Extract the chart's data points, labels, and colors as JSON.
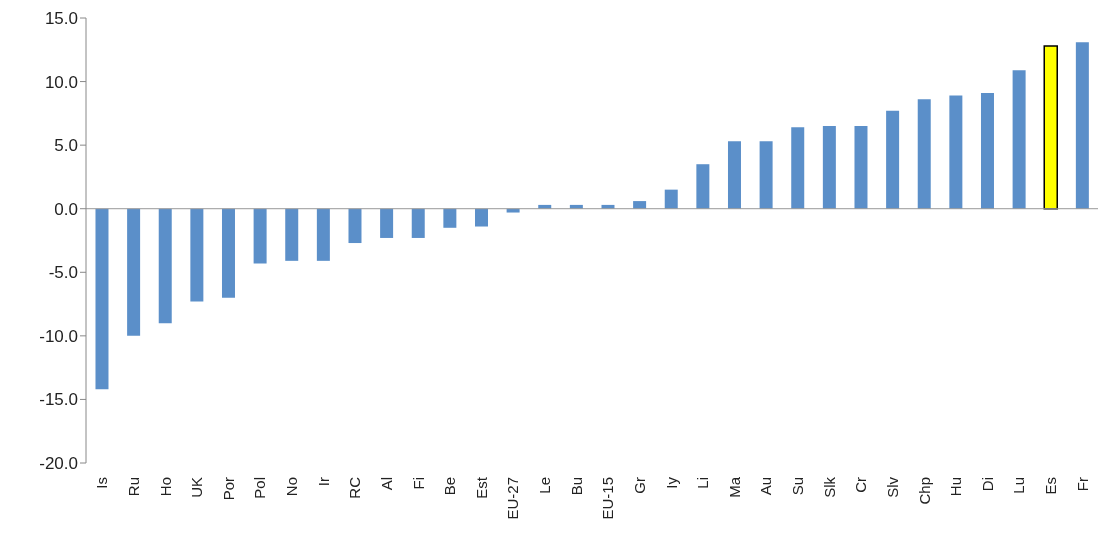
{
  "chart_data": {
    "type": "bar",
    "categories": [
      "Is",
      "Ru",
      "Ho",
      "UK",
      "Por",
      "Pol",
      "No",
      "Ir",
      "RC",
      "Al",
      "Fi",
      "Be",
      "Est",
      "EU-27",
      "Le",
      "Bu",
      "EU-15",
      "Gr",
      "Iy",
      "Li",
      "Ma",
      "Au",
      "Su",
      "Slk",
      "Cr",
      "Slv",
      "Chp",
      "Hu",
      "Di",
      "Lu",
      "Es",
      "Fr"
    ],
    "values": [
      -14.2,
      -10.0,
      -9.0,
      -7.3,
      -7.0,
      -4.3,
      -4.1,
      -4.1,
      -2.7,
      -2.3,
      -2.3,
      -1.5,
      -1.4,
      -0.3,
      0.3,
      0.3,
      0.3,
      0.6,
      1.5,
      3.5,
      5.3,
      5.3,
      6.4,
      6.5,
      6.5,
      7.7,
      8.6,
      8.9,
      9.1,
      10.9,
      12.8,
      13.1
    ],
    "colors": [
      "#5b8fc9",
      "#5b8fc9",
      "#5b8fc9",
      "#5b8fc9",
      "#5b8fc9",
      "#5b8fc9",
      "#5b8fc9",
      "#5b8fc9",
      "#5b8fc9",
      "#5b8fc9",
      "#5b8fc9",
      "#5b8fc9",
      "#5b8fc9",
      "#5b8fc9",
      "#5b8fc9",
      "#5b8fc9",
      "#5b8fc9",
      "#5b8fc9",
      "#5b8fc9",
      "#5b8fc9",
      "#5b8fc9",
      "#5b8fc9",
      "#5b8fc9",
      "#5b8fc9",
      "#5b8fc9",
      "#5b8fc9",
      "#5b8fc9",
      "#5b8fc9",
      "#5b8fc9",
      "#5b8fc9",
      "#ffff00",
      "#5b8fc9"
    ],
    "ylim": [
      -20,
      15
    ],
    "yticks": [
      {
        "value": -20,
        "label": "-20.0"
      },
      {
        "value": -15,
        "label": "-15.0"
      },
      {
        "value": -10,
        "label": "-10.0"
      },
      {
        "value": -5,
        "label": "-5.0"
      },
      {
        "value": 0,
        "label": "0.0"
      },
      {
        "value": 5,
        "label": "5.0"
      },
      {
        "value": 10,
        "label": "10.0"
      },
      {
        "value": 15,
        "label": "15.0"
      }
    ]
  }
}
